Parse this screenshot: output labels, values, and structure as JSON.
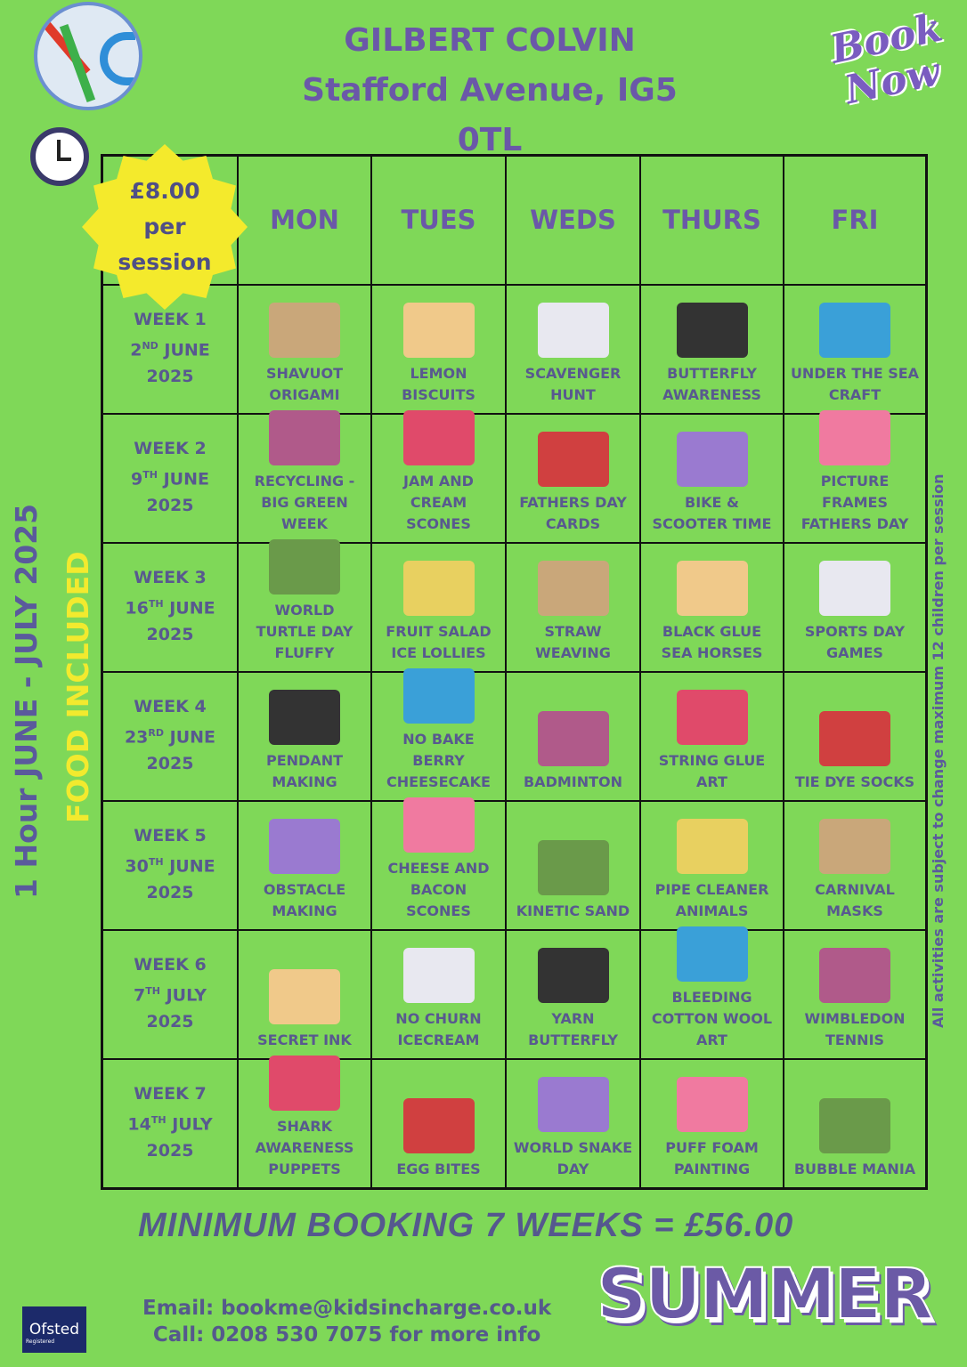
{
  "header": {
    "title_line1": "GILBERT COLVIN",
    "title_line2": "Stafford Avenue, IG5 0TL",
    "book_now": "Book Now"
  },
  "price": {
    "amount": "£8.00",
    "line2": "per",
    "line3": "session"
  },
  "days": [
    "MON",
    "TUES",
    "WEDS",
    "THURS",
    "FRI"
  ],
  "weeks": [
    {
      "label": "WEEK 1",
      "day": "2",
      "sfx": "ND",
      "month": "JUNE",
      "year": "2025",
      "acts": [
        "SHAVUOT ORIGAMI",
        "LEMON BISCUITS",
        "SCAVENGER HUNT",
        "BUTTERFLY AWARENESS",
        "UNDER THE SEA CRAFT"
      ]
    },
    {
      "label": "WEEK 2",
      "day": "9",
      "sfx": "TH",
      "month": "JUNE",
      "year": "2025",
      "acts": [
        "RECYCLING - BIG GREEN WEEK",
        "JAM AND CREAM SCONES",
        "FATHERS DAY CARDS",
        "BIKE & SCOOTER TIME",
        "PICTURE FRAMES FATHERS DAY"
      ]
    },
    {
      "label": "WEEK 3",
      "day": "16",
      "sfx": "TH",
      "month": "JUNE",
      "year": "2025",
      "acts": [
        "WORLD TURTLE DAY FLUFFY",
        "FRUIT SALAD ICE LOLLIES",
        "STRAW WEAVING",
        "BLACK GLUE SEA HORSES",
        "SPORTS DAY GAMES"
      ]
    },
    {
      "label": "WEEK 4",
      "day": "23",
      "sfx": "RD",
      "month": "JUNE",
      "year": "2025",
      "acts": [
        "PENDANT MAKING",
        "NO BAKE BERRY CHEESECAKE",
        "BADMINTON",
        "STRING GLUE ART",
        "TIE DYE SOCKS"
      ]
    },
    {
      "label": "WEEK 5",
      "day": "30",
      "sfx": "TH",
      "month": "JUNE",
      "year": "2025",
      "acts": [
        "OBSTACLE MAKING",
        "CHEESE AND BACON SCONES",
        "KINETIC SAND",
        "PIPE CLEANER ANIMALS",
        "CARNIVAL MASKS"
      ]
    },
    {
      "label": "WEEK 6",
      "day": "7",
      "sfx": "TH",
      "month": "JULY",
      "year": "2025",
      "acts": [
        "SECRET INK",
        "NO CHURN ICECREAM",
        "YARN BUTTERFLY",
        "BLEEDING COTTON WOOL ART",
        "WIMBLEDON TENNIS"
      ]
    },
    {
      "label": "WEEK 7",
      "day": "14",
      "sfx": "TH",
      "month": "JULY",
      "year": "2025",
      "acts": [
        "SHARK AWARENESS PUPPETS",
        "EGG BITES",
        "WORLD SNAKE DAY",
        "PUFF FOAM PAINTING",
        "BUBBLE MANIA"
      ]
    }
  ],
  "side": {
    "dates": "1 Hour JUNE - JULY 2025",
    "food": "FOOD INCLUDED",
    "note": "All activities are subject to change maximum 12 children per session"
  },
  "footer": {
    "minimum": "MINIMUM BOOKING 7 WEEKS = £56.00",
    "email": "Email: bookme@kidsincharge.co.uk",
    "call": "Call: 0208 530 7075 for more info",
    "summer": "SUMMER",
    "ofsted": "Ofsted",
    "ofsted_sub": "Registered"
  },
  "colors": {
    "background": "#7fd858",
    "purple": "#6a58a8",
    "text": "#58598f",
    "badge": "#f4ea2c"
  }
}
